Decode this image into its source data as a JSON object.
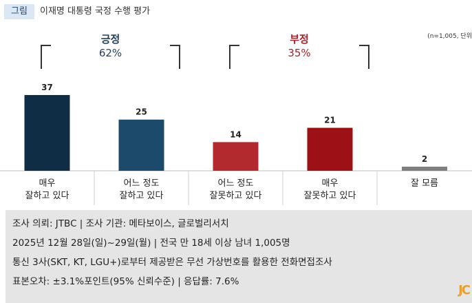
{
  "header": {
    "tag": "그림",
    "title": "이재명 대통령 국정 수행 평가"
  },
  "note": "(n=1,005, 단위",
  "groups": [
    {
      "name": "긍정",
      "value": "62%",
      "color": "#1e3d5e"
    },
    {
      "name": "부정",
      "value": "35%",
      "color": "#a8202a"
    }
  ],
  "chart_data": {
    "type": "bar",
    "categories": [
      "매우\n잘하고 있다",
      "어느 정도\n잘하고 있다",
      "어느 정도\n잘못하고 있다",
      "매우\n잘못하고 있다",
      "잘 모름"
    ],
    "values": [
      37,
      25,
      14,
      21,
      2
    ],
    "colors": [
      "#0f2d45",
      "#1c4a6a",
      "#b22a2e",
      "#9c1016",
      "#7f7f7f"
    ],
    "ylim": [
      0,
      40
    ]
  },
  "footer": {
    "lines": [
      "조사 의뢰: JTBC  |  조사 기관: 메타보이스, 글로벌리서치",
      "2025년 12월 28일(일)~29일(월)  |  전국 만 18세 이상 남녀 1,005명",
      "통신 3사(SKT, KT, LGU+)로부터 제공받은 무선 가상번호를 활용한 전화면접조사",
      "표본오차: ±3.1%포인트(95% 신뢰수준)  |  응답률: 7.6%"
    ],
    "logo": "JC"
  }
}
